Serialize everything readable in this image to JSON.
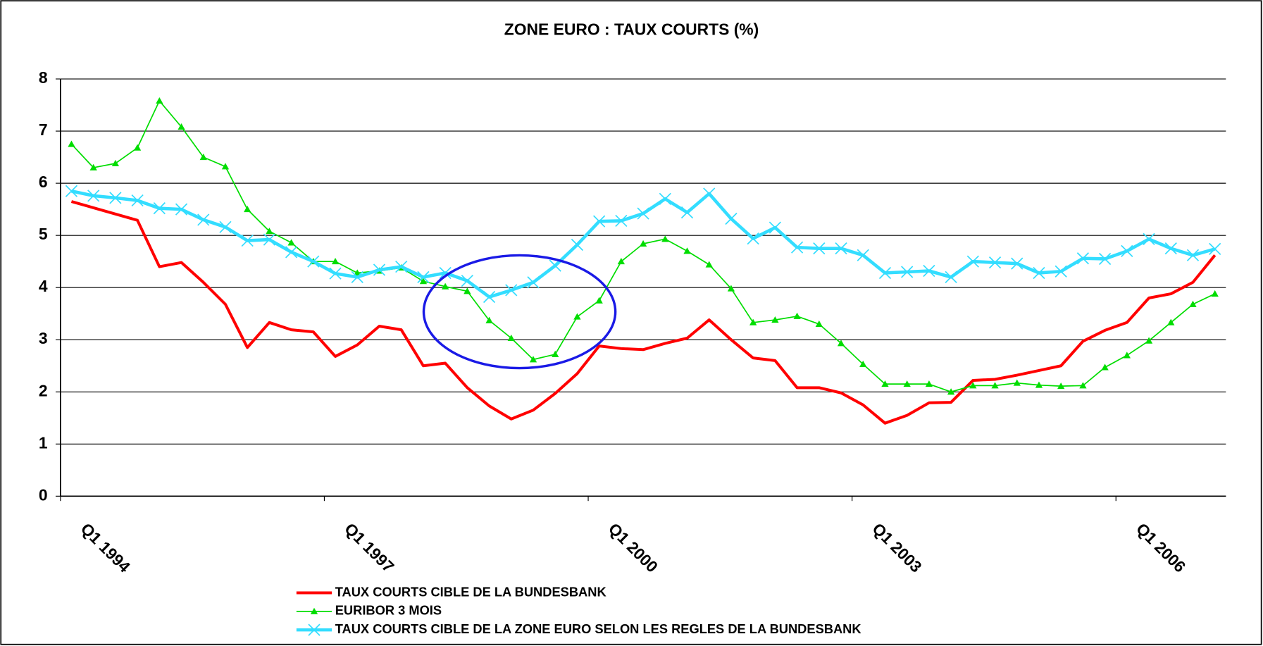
{
  "chart_data": {
    "type": "line",
    "title": "ZONE EURO : TAUX COURTS (%)",
    "categories": [
      "Q1 1994",
      null,
      null,
      null,
      null,
      null,
      null,
      null,
      null,
      null,
      null,
      null,
      "Q1 1997",
      null,
      null,
      null,
      null,
      null,
      null,
      null,
      null,
      null,
      null,
      null,
      "Q1 2000",
      null,
      null,
      null,
      null,
      null,
      null,
      null,
      null,
      null,
      null,
      null,
      "Q1 2003",
      null,
      null,
      null,
      null,
      null,
      null,
      null,
      null,
      null,
      null,
      null,
      "Q1 2006",
      null,
      null,
      null,
      null
    ],
    "series": [
      {
        "name": "TAUX COURTS CIBLE DE LA BUNDESBANK",
        "color": "#ff0000",
        "marker": "none",
        "values": [
          5.65,
          5.53,
          5.41,
          5.29,
          4.4,
          4.48,
          4.1,
          3.68,
          2.85,
          3.33,
          3.19,
          3.15,
          2.68,
          2.9,
          3.26,
          3.19,
          2.5,
          2.55,
          2.08,
          1.73,
          1.48,
          1.65,
          1.97,
          2.35,
          2.88,
          2.83,
          2.81,
          2.93,
          3.03,
          3.38,
          3.0,
          2.65,
          2.6,
          2.08,
          2.08,
          1.98,
          1.75,
          1.4,
          1.55,
          1.79,
          1.8,
          2.22,
          2.24,
          2.32,
          2.41,
          2.5,
          2.97,
          3.18,
          3.33,
          3.8,
          3.88,
          4.1,
          4.62
        ]
      },
      {
        "name": "EURIBOR 3 MOIS",
        "color": "#00dd00",
        "marker": "triangle",
        "values": [
          6.75,
          6.3,
          6.38,
          6.68,
          7.58,
          7.08,
          6.5,
          6.32,
          5.5,
          5.08,
          4.86,
          4.5,
          4.5,
          4.28,
          4.32,
          4.38,
          4.12,
          4.02,
          3.93,
          3.37,
          3.03,
          2.62,
          2.72,
          3.44,
          3.75,
          4.5,
          4.84,
          4.93,
          4.7,
          4.44,
          3.98,
          3.33,
          3.38,
          3.45,
          3.3,
          2.93,
          2.53,
          2.15,
          2.15,
          2.15,
          2.0,
          2.12,
          2.12,
          2.17,
          2.13,
          2.11,
          2.12,
          2.47,
          2.7,
          2.98,
          3.33,
          3.68,
          3.88
        ]
      },
      {
        "name": "TAUX COURTS CIBLE DE LA ZONE EURO SELON LES REGLES DE LA BUNDESBANK",
        "color": "#33ddff",
        "marker": "x",
        "values": [
          5.85,
          5.76,
          5.72,
          5.67,
          5.52,
          5.5,
          5.3,
          5.16,
          4.9,
          4.92,
          4.68,
          4.5,
          4.27,
          4.2,
          4.34,
          4.4,
          4.2,
          4.28,
          4.13,
          3.82,
          3.95,
          4.1,
          4.42,
          4.82,
          5.27,
          5.28,
          5.42,
          5.7,
          5.44,
          5.8,
          5.32,
          4.94,
          5.15,
          4.77,
          4.75,
          4.75,
          4.62,
          4.28,
          4.3,
          4.32,
          4.2,
          4.5,
          4.48,
          4.46,
          4.28,
          4.31,
          4.56,
          4.55,
          4.7,
          4.93,
          4.75,
          4.62,
          4.74
        ]
      }
    ],
    "ylim": [
      0,
      8
    ],
    "yticks": [
      0,
      1,
      2,
      3,
      4,
      5,
      6,
      7,
      8
    ],
    "grid": true
  }
}
